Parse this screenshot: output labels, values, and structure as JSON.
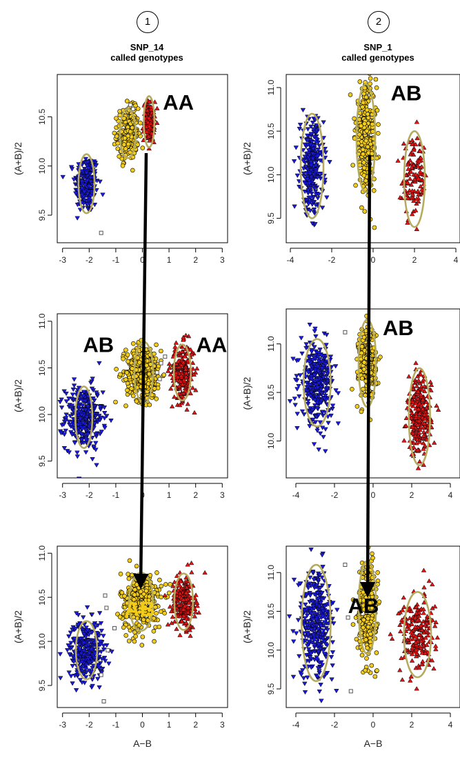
{
  "figure": {
    "columns": [
      {
        "number": "1",
        "title": "SNP_14",
        "subtitle": "called genotypes"
      },
      {
        "number": "2",
        "title": "SNP_1",
        "subtitle": "called genotypes"
      }
    ],
    "xlabel": "A−B",
    "ylabel": "(A+B)/2"
  },
  "colors": {
    "BB": "#1a1adb",
    "AB": "#f2cc1a",
    "AA": "#e01414",
    "ellipse": "#b5aa5e",
    "arrow": "#000000"
  },
  "chart_data": [
    {
      "type": "scatter",
      "column": 1,
      "row": 1,
      "xticks": [
        -3,
        -2,
        -1,
        0,
        1,
        2,
        3
      ],
      "yticks": [
        9.5,
        10.0,
        10.5
      ],
      "ytick_labels": [
        "9.5",
        "10.0",
        "10.5"
      ],
      "xlim": [
        -3.2,
        3.2
      ],
      "ylim": [
        9.22,
        10.93
      ],
      "clusters": [
        {
          "genotype": "BB",
          "marker": "triangle-down",
          "cx": -2.1,
          "cy": 9.82,
          "sx": 0.22,
          "sy": 0.15,
          "n": 220,
          "ellipse": [
            -2.1,
            9.82,
            0.3,
            0.3
          ]
        },
        {
          "genotype": "AB",
          "marker": "circle",
          "cx": -0.55,
          "cy": 10.33,
          "sx": 0.2,
          "sy": 0.13,
          "n": 220,
          "ellipse": [
            -0.55,
            10.33,
            0.3,
            0.25
          ]
        },
        {
          "genotype": "AA",
          "marker": "triangle-up",
          "cx": 0.25,
          "cy": 10.45,
          "sx": 0.1,
          "sy": 0.1,
          "n": 160,
          "ellipse": [
            0.25,
            10.45,
            0.2,
            0.26
          ]
        }
      ],
      "outliers": [
        [
          -1.55,
          9.32
        ],
        [
          -0.45,
          10.62
        ],
        [
          -0.35,
          10.58
        ]
      ],
      "annotations": [
        {
          "text": "AA",
          "x": 1.35,
          "y": 10.63
        }
      ]
    },
    {
      "type": "scatter",
      "column": 1,
      "row": 2,
      "xticks": [
        -3,
        -2,
        -1,
        0,
        1,
        2,
        3
      ],
      "yticks": [
        9.5,
        10.0,
        10.5,
        11.0
      ],
      "ytick_labels": [
        "9.5",
        "10.0",
        "10.5",
        "11.0"
      ],
      "xlim": [
        -3.2,
        3.2
      ],
      "ylim": [
        9.32,
        11.08
      ],
      "clusters": [
        {
          "genotype": "BB",
          "marker": "triangle-down",
          "cx": -2.2,
          "cy": 9.97,
          "sx": 0.35,
          "sy": 0.17,
          "n": 320,
          "ellipse": [
            -2.2,
            9.97,
            0.32,
            0.33
          ]
        },
        {
          "genotype": "AB",
          "marker": "circle",
          "cx": 0.05,
          "cy": 10.45,
          "sx": 0.33,
          "sy": 0.15,
          "n": 360,
          "ellipse": [
            0.05,
            10.45,
            0.35,
            0.33
          ]
        },
        {
          "genotype": "AA",
          "marker": "triangle-up",
          "cx": 1.5,
          "cy": 10.45,
          "sx": 0.22,
          "sy": 0.15,
          "n": 220,
          "ellipse": [
            1.5,
            10.45,
            0.32,
            0.3
          ]
        }
      ],
      "outliers": [
        [
          0.55,
          10.45
        ],
        [
          0.7,
          10.55
        ],
        [
          0.85,
          10.62
        ],
        [
          0.65,
          10.38
        ]
      ],
      "annotations": [
        {
          "text": "AB",
          "x": -1.65,
          "y": 10.73
        },
        {
          "text": "AA",
          "x": 2.6,
          "y": 10.73
        }
      ]
    },
    {
      "type": "scatter",
      "column": 1,
      "row": 3,
      "xticks": [
        -3,
        -2,
        -1,
        0,
        1,
        2,
        3
      ],
      "yticks": [
        9.5,
        10.0,
        10.5,
        11.0
      ],
      "ytick_labels": [
        "9.5",
        "10.0",
        "10.5",
        "11.0"
      ],
      "xlim": [
        -3.2,
        3.2
      ],
      "ylim": [
        9.25,
        11.08
      ],
      "clusters": [
        {
          "genotype": "BB",
          "marker": "triangle-down",
          "cx": -2.1,
          "cy": 9.9,
          "sx": 0.33,
          "sy": 0.17,
          "n": 300,
          "ellipse": [
            -2.1,
            9.9,
            0.4,
            0.33
          ]
        },
        {
          "genotype": "AB",
          "marker": "circle",
          "cx": -0.05,
          "cy": 10.45,
          "sx": 0.38,
          "sy": 0.17,
          "n": 340,
          "ellipse": [
            -0.05,
            10.45,
            0.45,
            0.33
          ]
        },
        {
          "genotype": "AA",
          "marker": "triangle-up",
          "cx": 1.55,
          "cy": 10.45,
          "sx": 0.22,
          "sy": 0.15,
          "n": 220,
          "ellipse": [
            1.55,
            10.45,
            0.35,
            0.32
          ]
        }
      ],
      "outliers": [
        [
          -1.4,
          10.52
        ],
        [
          -1.35,
          10.38
        ],
        [
          -1.05,
          10.15
        ],
        [
          -1.3,
          9.9
        ],
        [
          -1.55,
          9.62
        ],
        [
          -1.45,
          9.32
        ]
      ],
      "annotations": [
        {
          "text": "AB",
          "x": -0.1,
          "y": 10.35,
          "fill": "#f2cc1a"
        }
      ]
    },
    {
      "type": "scatter",
      "column": 2,
      "row": 1,
      "xticks": [
        -4,
        -2,
        0,
        2,
        4
      ],
      "yticks": [
        9.5,
        10.0,
        10.5,
        11.0
      ],
      "ytick_labels": [
        "9.5",
        "10.0",
        "10.5",
        "11.0"
      ],
      "xlim": [
        -4.2,
        4.2
      ],
      "ylim": [
        9.22,
        11.15
      ],
      "clusters": [
        {
          "genotype": "BB",
          "marker": "triangle-down",
          "cx": -2.95,
          "cy": 10.1,
          "sx": 0.28,
          "sy": 0.27,
          "n": 300,
          "ellipse": [
            -2.95,
            10.1,
            0.55,
            0.6
          ]
        },
        {
          "genotype": "AB",
          "marker": "circle",
          "cx": -0.35,
          "cy": 10.42,
          "sx": 0.25,
          "sy": 0.3,
          "n": 300,
          "ellipse": [
            -0.35,
            10.42,
            0.45,
            0.62
          ]
        },
        {
          "genotype": "AA",
          "marker": "triangle-up",
          "cx": 2.0,
          "cy": 9.95,
          "sx": 0.3,
          "sy": 0.22,
          "n": 120,
          "ellipse": [
            2.0,
            9.95,
            0.5,
            0.55
          ]
        }
      ],
      "outliers": [],
      "annotations": [
        {
          "text": "AB",
          "x": 1.6,
          "y": 10.92
        }
      ]
    },
    {
      "type": "scatter",
      "column": 2,
      "row": 2,
      "xticks": [
        -4,
        -2,
        0,
        2,
        4
      ],
      "yticks": [
        10.0,
        10.5,
        11.0
      ],
      "ytick_labels": [
        "10.0",
        "10.5",
        "11.0"
      ],
      "xlim": [
        -4.5,
        4.5
      ],
      "ylim": [
        9.62,
        11.36
      ],
      "clusters": [
        {
          "genotype": "BB",
          "marker": "triangle-down",
          "cx": -2.9,
          "cy": 10.6,
          "sx": 0.42,
          "sy": 0.2,
          "n": 330,
          "ellipse": [
            -2.9,
            10.6,
            0.7,
            0.45
          ]
        },
        {
          "genotype": "AB",
          "marker": "circle",
          "cx": -0.3,
          "cy": 10.8,
          "sx": 0.22,
          "sy": 0.18,
          "n": 280,
          "ellipse": [
            -0.3,
            10.8,
            0.45,
            0.45
          ]
        },
        {
          "genotype": "AA",
          "marker": "triangle-up",
          "cx": 2.4,
          "cy": 10.25,
          "sx": 0.3,
          "sy": 0.2,
          "n": 260,
          "ellipse": [
            2.4,
            10.25,
            0.55,
            0.5
          ]
        }
      ],
      "outliers": [
        [
          -1.45,
          11.12
        ]
      ],
      "annotations": [
        {
          "text": "AB",
          "x": 1.3,
          "y": 11.15
        }
      ]
    },
    {
      "type": "scatter",
      "column": 2,
      "row": 3,
      "xticks": [
        -4,
        -2,
        0,
        2,
        4
      ],
      "yticks": [
        9.5,
        10.0,
        10.5,
        11.0
      ],
      "ytick_labels": [
        "9.5",
        "10.0",
        "10.5",
        "11.0"
      ],
      "xlim": [
        -4.5,
        4.5
      ],
      "ylim": [
        9.26,
        11.34
      ],
      "clusters": [
        {
          "genotype": "BB",
          "marker": "triangle-down",
          "cx": -2.95,
          "cy": 10.35,
          "sx": 0.45,
          "sy": 0.35,
          "n": 360,
          "ellipse": [
            -2.95,
            10.35,
            0.75,
            0.75
          ]
        },
        {
          "genotype": "AB",
          "marker": "circle",
          "cx": -0.3,
          "cy": 10.55,
          "sx": 0.25,
          "sy": 0.3,
          "n": 280,
          "ellipse": [
            -0.3,
            10.55,
            0.45,
            0.6
          ]
        },
        {
          "genotype": "AA",
          "marker": "triangle-up",
          "cx": 2.3,
          "cy": 10.2,
          "sx": 0.45,
          "sy": 0.25,
          "n": 200,
          "ellipse": [
            2.3,
            10.2,
            0.7,
            0.55
          ]
        }
      ],
      "outliers": [
        [
          -1.45,
          11.1
        ],
        [
          -1.3,
          10.42
        ],
        [
          -1.15,
          9.47
        ]
      ],
      "annotations": [
        {
          "text": "AB",
          "x": -0.5,
          "y": 10.55
        }
      ]
    }
  ]
}
